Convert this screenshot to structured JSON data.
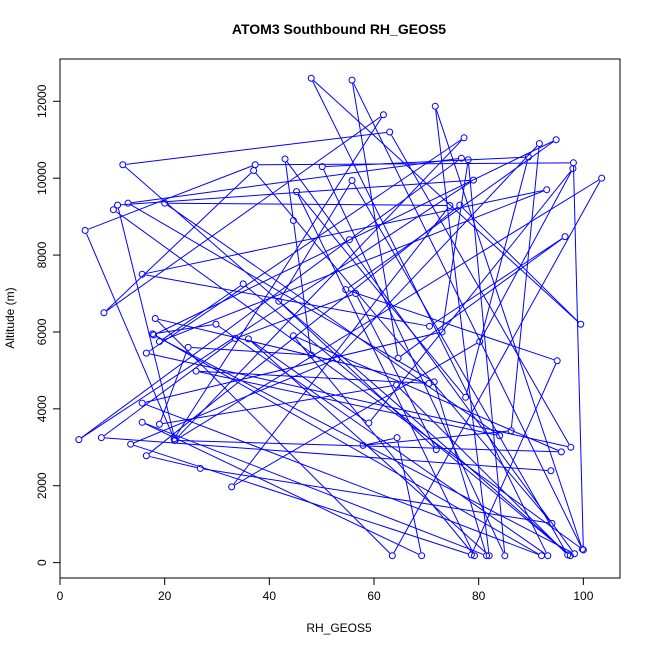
{
  "chart_data": {
    "type": "scatter",
    "title": "ATOM3 Southbound RH_GEOS5",
    "xlabel": "RH_GEOS5",
    "ylabel": "Altitude (m)",
    "xlim": [
      0,
      107
    ],
    "ylim": [
      -400,
      13100
    ],
    "xticks": [
      0,
      20,
      40,
      60,
      80,
      100
    ],
    "yticks": [
      0,
      2000,
      4000,
      6000,
      8000,
      10000,
      12000
    ],
    "xtick_labels": [
      "0",
      "20",
      "40",
      "60",
      "80",
      "100"
    ],
    "ytick_labels": [
      "0",
      "2000",
      "4000",
      "6000",
      "8000",
      "10000",
      "12000"
    ],
    "grid": false,
    "series": [
      {
        "style": "points connected by lines",
        "color": "#0000ff",
        "x": [
          10.2,
          100.0,
          98.1,
          37.3,
          4.8,
          21.8,
          61.8,
          8.4,
          37.0,
          94.0,
          26.8,
          16.5,
          76.4,
          99.5,
          48.0,
          93.2,
          29.8,
          17.7,
          92.0,
          15.7,
          73.0,
          78.0,
          85.0,
          50.1,
          89.5,
          77.5,
          45.2,
          79.2,
          44.6,
          95.8,
          21.9,
          77.2,
          16.5,
          97.6,
          63.0,
          12.0,
          97.5,
          35.0,
          19.0,
          93.0,
          15.7,
          70.6,
          96.5,
          64.6,
          55.8,
          99.8,
          71.7,
          82.0,
          36.0,
          59.0,
          98.0,
          80.2,
          32.8,
          74.5,
          20.0,
          84.0,
          26.0,
          70.5,
          18.2,
          63.5,
          103.5,
          22.0,
          11.0,
          79.0,
          3.6,
          55.3,
          76.7,
          13.0,
          71.5,
          81.5,
          15.7,
          69.1,
          64.4,
          57.9,
          86.2,
          91.6,
          52.9,
          13.5,
          78.6,
          95.0,
          54.6,
          94.8,
          17.9,
          98.3,
          43.0,
          44.6,
          48.0,
          24.5,
          19.0,
          64.3,
          97.0,
          55.8,
          41.8,
          71.9,
          56.5,
          33.5,
          7.9,
          93.8
        ],
        "y": [
          9180,
          330,
          10400,
          10350,
          8640,
          3220,
          11650,
          6500,
          10200,
          1020,
          2450,
          2780,
          9300,
          6200,
          12600,
          180,
          6200,
          5950,
          180,
          4150,
          6000,
          10480,
          180,
          10300,
          10550,
          4300,
          9650,
          180,
          5900,
          2880,
          3180,
          11050,
          5450,
          3000,
          11200,
          10350,
          180,
          7250,
          5750,
          9700,
          7500,
          6150,
          8480,
          5320,
          12550,
          350,
          11870,
          180,
          5820,
          3630,
          10250,
          5750,
          1970,
          9290,
          9350,
          3300,
          4980,
          4660,
          6350,
          180,
          10000,
          3180,
          9300,
          9950,
          3200,
          8400,
          10520,
          9350,
          4700,
          180,
          3650,
          180,
          3250,
          3050,
          3430,
          10900,
          5300,
          3080,
          200,
          5250,
          7100,
          11000,
          5920,
          230,
          10500,
          8900,
          5400,
          5600,
          3600,
          4620,
          200,
          9940,
          6800,
          2940,
          7000,
          5830,
          3250,
          2390
        ]
      }
    ]
  }
}
